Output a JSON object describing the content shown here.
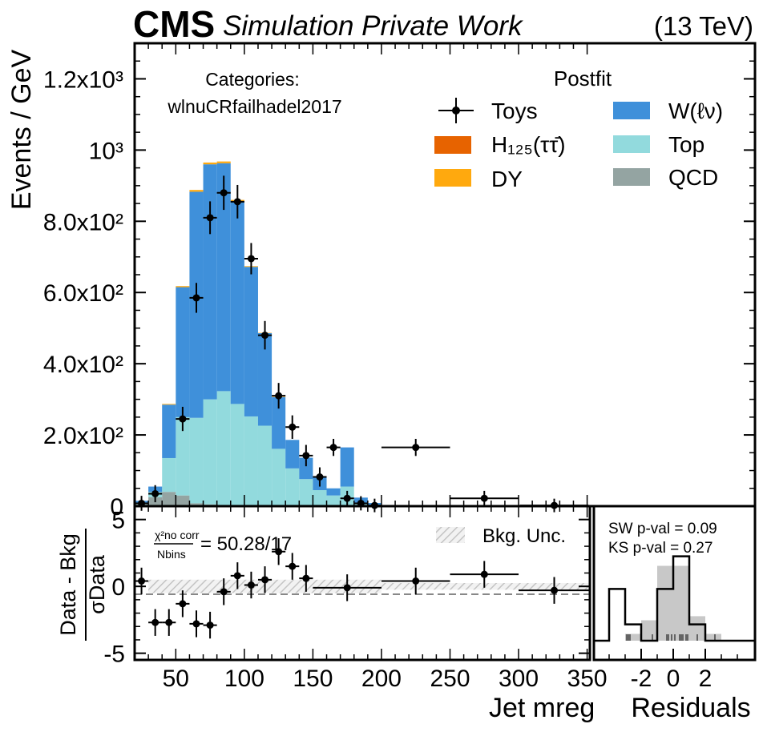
{
  "header": {
    "brand": "CMS",
    "subtitle": "Simulation Private Work",
    "energy": "(13 TeV)"
  },
  "main_panel": {
    "ylabel": "Events / GeV",
    "y_ticks": [
      {
        "value": 0,
        "label": "0"
      },
      {
        "value": 200,
        "label": "2.0x10²"
      },
      {
        "value": 400,
        "label": "4.0x10²"
      },
      {
        "value": 600,
        "label": "6.0x10²"
      },
      {
        "value": 800,
        "label": "8.0x10²"
      },
      {
        "value": 1000,
        "label": "10³"
      },
      {
        "value": 1200,
        "label": "1.2x10³"
      }
    ],
    "category_title": "Categories:",
    "category_name": "wlnuCRfailhadel2017",
    "legend_title": "Postfit",
    "legend": {
      "toys": "Toys",
      "higgs": "H₁₂₅(ττ̄)",
      "dy": "DY",
      "wlnu": "W(ℓν)",
      "top": "Top",
      "qcd": "QCD"
    }
  },
  "ratio_panel": {
    "ylabel_num": "Data - Bkg",
    "ylabel_den": "σData",
    "y_ticks": [
      {
        "value": 5,
        "label": "5"
      },
      {
        "value": 0,
        "label": "0"
      },
      {
        "value": -5,
        "label": "-5"
      }
    ],
    "chi2_top": "χ²no corr",
    "chi2_bottom": "Nbins",
    "chi2_value": "= 50.28/17",
    "unc_label": "Bkg. Unc.",
    "xlabel": "Jet mreg",
    "x_ticks": [
      50,
      100,
      150,
      200,
      250,
      300,
      350
    ]
  },
  "residual_panel": {
    "sw_text": "SW p-val = 0.09",
    "ks_text": "KS p-val = 0.27",
    "x_ticks": [
      "-2",
      "0",
      "2"
    ],
    "xlabel": "Residuals"
  },
  "colors": {
    "wlnu": "#3f90da",
    "top": "#92dadd",
    "qcd": "#94a4a2",
    "dy": "#ffa90e",
    "higgs": "#e76300",
    "data": "#000000"
  },
  "chart_data": [
    {
      "type": "bar",
      "stacked": true,
      "xlim": [
        20,
        352
      ],
      "ylim": [
        0,
        1300
      ],
      "bin_edges": [
        20,
        30,
        40,
        50,
        60,
        70,
        80,
        90,
        100,
        110,
        120,
        130,
        140,
        150,
        160,
        170,
        180,
        190,
        200,
        250,
        300,
        352
      ],
      "series": [
        {
          "name": "QCD",
          "values": [
            5,
            25,
            40,
            30,
            8,
            5,
            3,
            2,
            2,
            1,
            1,
            1,
            1,
            0,
            0,
            0,
            0,
            0,
            0,
            0,
            0
          ]
        },
        {
          "name": "Top",
          "values": [
            3,
            15,
            95,
            220,
            240,
            295,
            320,
            285,
            250,
            225,
            160,
            105,
            75,
            45,
            30,
            55,
            8,
            3,
            0,
            0,
            0
          ]
        },
        {
          "name": "W(ℓν)",
          "values": [
            7,
            15,
            150,
            365,
            635,
            660,
            640,
            570,
            420,
            260,
            145,
            80,
            60,
            35,
            20,
            110,
            16,
            6,
            0,
            0,
            0
          ]
        },
        {
          "name": "DY",
          "values": [
            0,
            0,
            2,
            3,
            5,
            5,
            5,
            3,
            2,
            1,
            1,
            0,
            0,
            0,
            0,
            0,
            0,
            0,
            0,
            0,
            0
          ]
        },
        {
          "name": "H₁₂₅(ττ̄)",
          "values": [
            0,
            0,
            0,
            0,
            0,
            0,
            0,
            0,
            0,
            0,
            0,
            0,
            0,
            0,
            0,
            0,
            0,
            0,
            0,
            0,
            0
          ]
        }
      ],
      "data": {
        "name": "Toys",
        "x": [
          25,
          35,
          55,
          65,
          75,
          85,
          95,
          105,
          115,
          125,
          135,
          145,
          155,
          165,
          175,
          185,
          195,
          225,
          275,
          326
        ],
        "y": [
          8,
          35,
          245,
          585,
          810,
          880,
          855,
          695,
          480,
          310,
          222,
          142,
          82,
          165,
          22,
          8,
          2,
          165,
          22,
          2
        ],
        "y_err": [
          3,
          6,
          16,
          24,
          28,
          30,
          29,
          26,
          22,
          18,
          15,
          12,
          9,
          6,
          3,
          2,
          1,
          6,
          3,
          1
        ]
      }
    },
    {
      "type": "scatter",
      "xlabel": "Jet mreg",
      "ylabel": "Data - Bkg / σData",
      "xlim": [
        20,
        352
      ],
      "ylim": [
        -5.5,
        6
      ],
      "x": [
        25,
        35,
        45,
        55,
        65,
        75,
        85,
        95,
        105,
        115,
        125,
        135,
        145,
        175,
        225,
        275,
        326
      ],
      "x_err": [
        5,
        5,
        5,
        5,
        5,
        5,
        5,
        5,
        5,
        5,
        5,
        5,
        5,
        25,
        25,
        25,
        26
      ],
      "y": [
        0.4,
        -2.7,
        -2.7,
        -1.3,
        -2.8,
        -2.9,
        -0.4,
        0.8,
        0.1,
        0.5,
        2.6,
        1.5,
        0.6,
        -0.1,
        0.4,
        0.9,
        -0.3
      ],
      "y_err": [
        1,
        1,
        1,
        1,
        1,
        1,
        1,
        1,
        1,
        1,
        1,
        1,
        1,
        1,
        1,
        1,
        1
      ],
      "band": {
        "name": "Bkg. Unc.",
        "low": -0.5,
        "high": 0.5
      }
    },
    {
      "type": "bar",
      "xlabel": "Residuals",
      "xlim": [
        -5,
        5
      ],
      "bin_edges": [
        -4,
        -3,
        -2,
        -1,
        0,
        1,
        2,
        3
      ],
      "expected": [
        0,
        0.05,
        0.15,
        0.55,
        0.55,
        0.18,
        0.05
      ],
      "observed": [
        0.38,
        0.12,
        0,
        0.38,
        0.62,
        0.12,
        0
      ]
    }
  ]
}
